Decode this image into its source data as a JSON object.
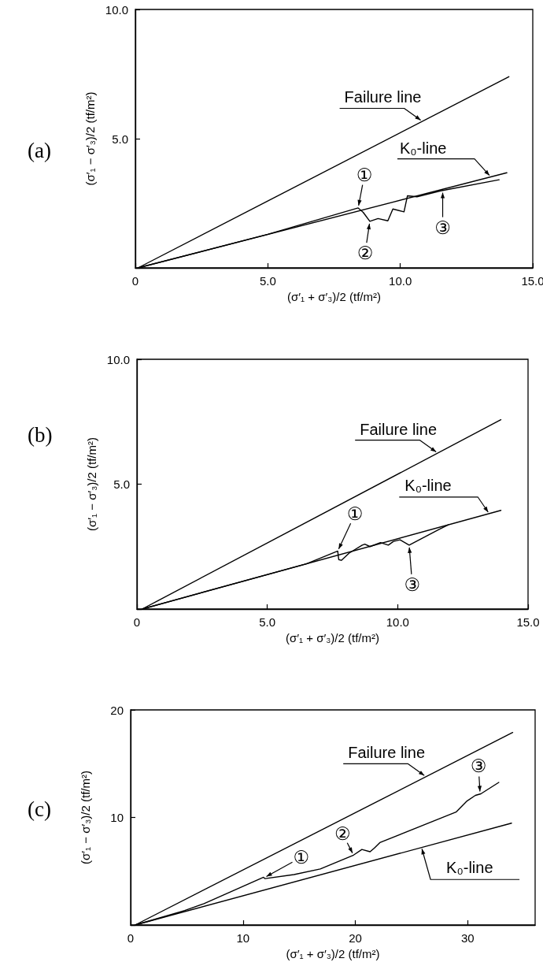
{
  "chart_data": [
    {
      "type": "line",
      "title": "(a)",
      "xlabel": "(σ′₁ + σ′₃)/2 (tf/m²)",
      "ylabel": "(σ′₁ − σ′₃)/2 (tf/m²)",
      "xlim": [
        0,
        15
      ],
      "ylim": [
        0,
        10
      ],
      "xticks": [
        0,
        {
          "value": 5,
          "label": "5.0"
        },
        {
          "value": 10,
          "label": "10.0"
        },
        {
          "value": 15,
          "label": "15.0"
        }
      ],
      "yticks": [
        {
          "value": 0,
          "label": null
        },
        {
          "value": 5,
          "label": "5.0"
        },
        {
          "value": 10,
          "label": "10.0"
        }
      ],
      "grid": false,
      "legend": false,
      "marker": "none",
      "line_style": "solid",
      "series": [
        {
          "name": "Failure line",
          "color": "#000000",
          "x": [
            0.1,
            14.1
          ],
          "values": [
            0,
            7.4
          ]
        },
        {
          "name": "K₀-line",
          "color": "#000000",
          "x": [
            0.1,
            14.02
          ],
          "values": [
            0,
            3.68
          ]
        },
        {
          "color": "#000000",
          "x": [
            0.1,
            5.0,
            8.41,
            8.6,
            8.85,
            9.16,
            9.53,
            9.72,
            10.14,
            10.27,
            10.63,
            11.52,
            13.73
          ],
          "values": [
            0,
            1.3,
            2.32,
            2.15,
            1.8,
            1.91,
            1.82,
            2.28,
            2.17,
            2.79,
            2.75,
            2.98,
            3.41
          ]
        }
      ],
      "annotations": [
        {
          "text": "①",
          "x": 8.41,
          "y": 2.32
        },
        {
          "text": "②",
          "x": 8.85,
          "y": 1.8
        },
        {
          "text": "③",
          "x": 11.6,
          "y": 3.0
        }
      ]
    },
    {
      "type": "line",
      "title": "(b)",
      "xlabel": "(σ′₁ + σ′₃)/2 (tf/m²)",
      "ylabel": "(σ′₁ − σ′₃)/2 (tf/m²)",
      "xlim": [
        0,
        15
      ],
      "ylim": [
        0,
        10
      ],
      "xticks": [
        0,
        {
          "value": 5,
          "label": "5.0"
        },
        {
          "value": 10,
          "label": "10.0"
        },
        {
          "value": 15,
          "label": "15.0"
        }
      ],
      "yticks": [
        {
          "value": 0,
          "label": null
        },
        {
          "value": 5,
          "label": "5.0"
        },
        {
          "value": 10,
          "label": "10.0"
        }
      ],
      "grid": false,
      "legend": false,
      "marker": "none",
      "line_style": "solid",
      "series": [
        {
          "name": "Failure line",
          "color": "#000000",
          "x": [
            0.2,
            13.96
          ],
          "values": [
            0,
            7.58
          ]
        },
        {
          "name": "K₀-line",
          "color": "#000000",
          "x": [
            0.2,
            13.96
          ],
          "values": [
            0,
            3.95
          ]
        },
        {
          "color": "#000000",
          "x": [
            0.2,
            6.5,
            7.7,
            7.74,
            7.84,
            8.14,
            8.64,
            8.74,
            8.94,
            9.34,
            9.64,
            9.84,
            10.09,
            10.44,
            11.59,
            11.94
          ],
          "values": [
            0,
            1.81,
            2.32,
            1.98,
            1.95,
            2.24,
            2.56,
            2.6,
            2.5,
            2.66,
            2.56,
            2.71,
            2.77,
            2.56,
            3.19,
            3.37
          ]
        }
      ],
      "annotations": [
        {
          "text": "①",
          "x": 7.7,
          "y": 2.32
        },
        {
          "text": "③",
          "x": 10.44,
          "y": 2.56
        }
      ]
    },
    {
      "type": "line",
      "title": "(c)",
      "xlabel": "(σ′₁ + σ′₃)/2 (tf/m²)",
      "ylabel": "(σ′₁ − σ′₃)/2 (tf/m²)",
      "xlim": [
        0,
        36
      ],
      "ylim": [
        0,
        20
      ],
      "xticks": [
        0,
        10,
        20,
        30
      ],
      "yticks": [
        {
          "value": 0,
          "label": null
        },
        10,
        20
      ],
      "grid": false,
      "legend": false,
      "marker": "none",
      "line_style": "solid",
      "series": [
        {
          "name": "Failure line",
          "color": "#000000",
          "x": [
            0.4,
            34.0
          ],
          "values": [
            0,
            17.9
          ]
        },
        {
          "name": "K₀-line",
          "color": "#000000",
          "x": [
            0.4,
            33.9
          ],
          "values": [
            0,
            9.47
          ]
        },
        {
          "color": "#000000",
          "x": [
            0.4,
            4.81,
            6.53,
            11.83,
            11.96,
            14.54,
            16.88,
            19.84,
            20.58,
            21.31,
            21.68,
            22.18,
            28.96,
            29.94,
            30.68,
            31.17,
            32.77
          ],
          "values": [
            0,
            1.34,
            1.99,
            4.44,
            4.31,
            4.69,
            5.21,
            6.5,
            7.02,
            6.81,
            7.15,
            7.66,
            10.5,
            11.53,
            12.05,
            12.2,
            13.26
          ]
        }
      ],
      "annotations": [
        {
          "text": "①",
          "x": 11.9,
          "y": 4.4
        },
        {
          "text": "②",
          "x": 19.84,
          "y": 6.5
        },
        {
          "text": "③",
          "x": 31.1,
          "y": 12.2
        }
      ]
    }
  ]
}
